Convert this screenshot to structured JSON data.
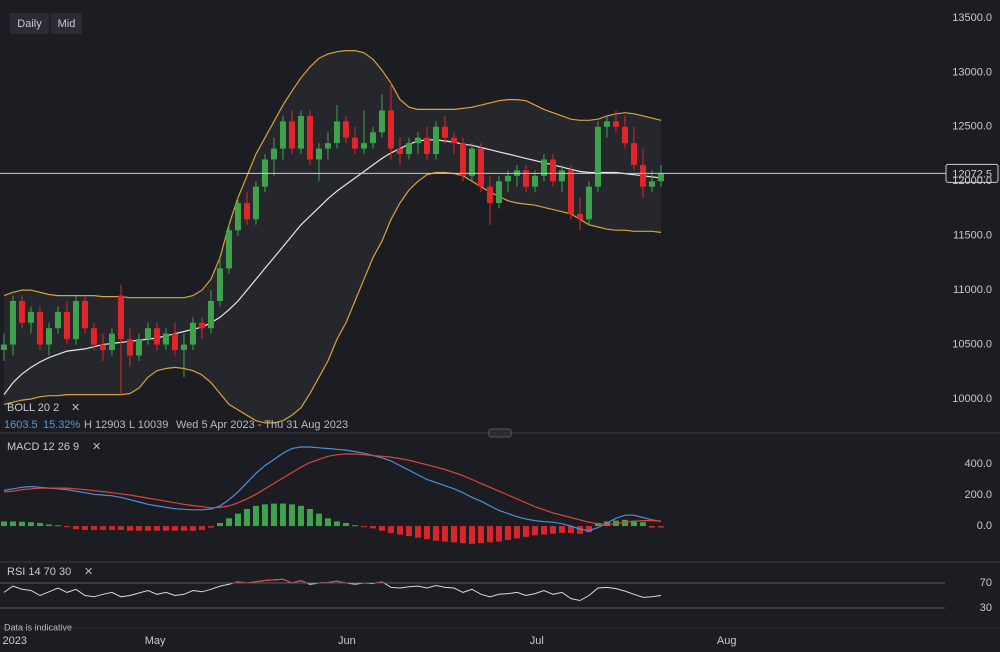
{
  "toolbar": [
    "Daily",
    "Mid"
  ],
  "footnote": "Data is indicative",
  "chart_data": [
    {
      "type": "candlestick",
      "indicator_label": "BOLL 20 2",
      "info": [
        "1603.5",
        "15.32%",
        "H 12903",
        "L 10039",
        "Wed 5 Apr 2023 - Thu 31 Aug 2023"
      ],
      "open": [
        10450,
        10500,
        10900,
        10700,
        10800,
        10500,
        10650,
        10800,
        10550,
        10900,
        10650,
        10500,
        10450,
        10950,
        10550,
        10400,
        10550,
        10650,
        10500,
        10600,
        10450,
        10500,
        10700,
        10650,
        10900,
        11200,
        11550,
        11800,
        11650,
        11950,
        12200,
        12300,
        12550,
        12300,
        12600,
        12200,
        12300,
        12350,
        12550,
        12400,
        12300,
        12350,
        12450,
        12650,
        12300,
        12250,
        12350,
        12400,
        12250,
        12500,
        12400,
        12350,
        12050,
        12300,
        11950,
        11800,
        12000,
        12050,
        12100,
        11950,
        12050,
        12200,
        12000,
        12100,
        11700,
        11650,
        11950,
        12500,
        12550,
        12500,
        12350,
        12150,
        11950,
        12000
      ],
      "high": [
        10600,
        10950,
        10950,
        10850,
        10850,
        10700,
        10850,
        10900,
        10950,
        10950,
        10700,
        10600,
        10650,
        11050,
        10650,
        10600,
        10700,
        10700,
        10650,
        10700,
        10600,
        10750,
        10750,
        11000,
        11300,
        11600,
        11850,
        11900,
        12000,
        12250,
        12400,
        12600,
        12650,
        12650,
        12650,
        12350,
        12450,
        12700,
        12600,
        12500,
        12650,
        12500,
        12800,
        12903,
        12400,
        12400,
        12450,
        12500,
        12550,
        12600,
        12450,
        12400,
        12350,
        12350,
        12050,
        12050,
        12100,
        12150,
        12150,
        12100,
        12250,
        12250,
        12150,
        12150,
        11850,
        12000,
        12550,
        12600,
        12650,
        12600,
        12500,
        12300,
        12100,
        12150
      ],
      "low": [
        10350,
        10400,
        10650,
        10600,
        10450,
        10400,
        10600,
        10500,
        10500,
        10600,
        10450,
        10350,
        10400,
        10039,
        10300,
        10350,
        10500,
        10450,
        10450,
        10400,
        10200,
        10450,
        10550,
        10600,
        10850,
        11150,
        11500,
        11600,
        11600,
        11900,
        12050,
        12200,
        12250,
        12250,
        12150,
        12000,
        12200,
        12300,
        12350,
        12250,
        12250,
        12300,
        12400,
        12200,
        12150,
        12200,
        12250,
        12200,
        12200,
        12350,
        12250,
        12000,
        12000,
        11900,
        11600,
        11750,
        11900,
        11950,
        11900,
        11900,
        12000,
        11950,
        11900,
        11650,
        11550,
        11600,
        11900,
        12400,
        12450,
        12300,
        12100,
        11850,
        11900,
        11950
      ],
      "close": [
        10500,
        10900,
        10700,
        10800,
        10500,
        10650,
        10800,
        10550,
        10900,
        10650,
        10500,
        10450,
        10600,
        10550,
        10400,
        10550,
        10650,
        10500,
        10600,
        10450,
        10500,
        10700,
        10650,
        10900,
        11200,
        11550,
        11800,
        11650,
        11950,
        12200,
        12300,
        12550,
        12300,
        12600,
        12200,
        12300,
        12350,
        12550,
        12400,
        12300,
        12350,
        12450,
        12650,
        12300,
        12250,
        12350,
        12400,
        12250,
        12500,
        12400,
        12350,
        12050,
        12300,
        11950,
        11800,
        12000,
        12050,
        12100,
        11950,
        12050,
        12200,
        12000,
        12100,
        11700,
        11650,
        11950,
        12500,
        12550,
        12500,
        12350,
        12150,
        11950,
        12000,
        12072.5
      ],
      "up_color": "#3fa34d",
      "down_color": "#e0262b",
      "bands": [
        {
          "color": "#d9a33a",
          "values": [
            10950,
            10980,
            11000,
            11000,
            10980,
            10960,
            10950,
            10950,
            10950,
            10950,
            10950,
            10940,
            10940,
            10940,
            10930,
            10930,
            10930,
            10930,
            10930,
            10930,
            10930,
            10950,
            11000,
            11100,
            11300,
            11600,
            11850,
            12050,
            12250,
            12400,
            12550,
            12700,
            12830,
            12950,
            13050,
            13130,
            13170,
            13190,
            13200,
            13200,
            13180,
            13120,
            13020,
            12900,
            12750,
            12680,
            12660,
            12660,
            12660,
            12660,
            12660,
            12670,
            12680,
            12700,
            12720,
            12740,
            12750,
            12750,
            12740,
            12700,
            12660,
            12630,
            12600,
            12570,
            12560,
            12560,
            12570,
            12600,
            12620,
            12630,
            12620,
            12600,
            12580,
            12560
          ]
        },
        {
          "color": "#e6e6e6",
          "values": [
            10040,
            10150,
            10230,
            10290,
            10340,
            10380,
            10410,
            10440,
            10450,
            10460,
            10480,
            10500,
            10510,
            10520,
            10530,
            10540,
            10550,
            10560,
            10580,
            10600,
            10620,
            10640,
            10660,
            10700,
            10750,
            10820,
            10900,
            11000,
            11100,
            11200,
            11300,
            11400,
            11500,
            11600,
            11680,
            11760,
            11840,
            11910,
            11970,
            12030,
            12090,
            12150,
            12210,
            12260,
            12300,
            12340,
            12370,
            12380,
            12380,
            12370,
            12360,
            12340,
            12330,
            12310,
            12290,
            12270,
            12250,
            12230,
            12210,
            12190,
            12170,
            12150,
            12130,
            12110,
            12090,
            12080,
            12080,
            12080,
            12080,
            12070,
            12060,
            12050,
            12040,
            12030
          ]
        },
        {
          "color": "#d9a33a",
          "values": [
            9950,
            9970,
            9990,
            10000,
            10020,
            10030,
            10030,
            10040,
            10040,
            10040,
            10040,
            10040,
            10040,
            10040,
            10050,
            10100,
            10200,
            10260,
            10280,
            10290,
            10280,
            10260,
            10220,
            10150,
            10050,
            9950,
            9900,
            9850,
            9800,
            9780,
            9780,
            9800,
            9850,
            9920,
            10050,
            10200,
            10350,
            10550,
            10700,
            10900,
            11100,
            11300,
            11450,
            11650,
            11800,
            11920,
            12000,
            12060,
            12080,
            12080,
            12070,
            12050,
            12000,
            11950,
            11900,
            11860,
            11820,
            11800,
            11790,
            11780,
            11760,
            11740,
            11720,
            11700,
            11650,
            11600,
            11580,
            11560,
            11550,
            11550,
            11540,
            11540,
            11540,
            11530
          ]
        }
      ],
      "band_fill": "#26272c",
      "last_price": 12072.5,
      "ylim": [
        9715,
        13665
      ],
      "yticks": [
        {
          "value": 10000,
          "label": "10000.0"
        },
        {
          "value": 10500,
          "label": "10500.0"
        },
        {
          "value": 11000,
          "label": "11000.0"
        },
        {
          "value": 11500,
          "label": "11500.0"
        },
        {
          "value": 12000,
          "label": "12000.0"
        },
        {
          "value": 12500,
          "label": "12500.0"
        },
        {
          "value": 13000,
          "label": "13000.0"
        },
        {
          "value": 13500,
          "label": "13500.0"
        }
      ],
      "xlim": [
        -0.44,
        110.67
      ],
      "xticks": [
        {
          "value": 1.2,
          "label": "2023"
        },
        {
          "value": 16.8,
          "label": "May"
        },
        {
          "value": 38.1,
          "label": "Jun"
        },
        {
          "value": 59.2,
          "label": "Jul"
        },
        {
          "value": 80.3,
          "label": "Aug"
        }
      ]
    },
    {
      "type": "macd",
      "indicator_label": "MACD 12 26 9",
      "series": [
        {
          "color": "#4a90d9",
          "values": [
            230,
            240,
            250,
            255,
            250,
            245,
            240,
            235,
            225,
            215,
            205,
            200,
            195,
            185,
            170,
            155,
            140,
            130,
            120,
            112,
            108,
            105,
            105,
            110,
            130,
            170,
            220,
            280,
            340,
            390,
            430,
            470,
            500,
            510,
            510,
            505,
            500,
            495,
            490,
            480,
            470,
            455,
            440,
            420,
            390,
            360,
            330,
            300,
            280,
            260,
            240,
            215,
            185,
            160,
            130,
            100,
            80,
            60,
            45,
            35,
            28,
            25,
            15,
            0,
            -20,
            -30,
            -10,
            20,
            50,
            70,
            70,
            55,
            40,
            30
          ]
        },
        {
          "color": "#e0423c",
          "values": [
            220,
            225,
            235,
            240,
            245,
            245,
            245,
            245,
            240,
            235,
            228,
            222,
            215,
            208,
            200,
            190,
            180,
            170,
            160,
            150,
            140,
            132,
            125,
            118,
            120,
            130,
            150,
            175,
            205,
            240,
            275,
            310,
            345,
            380,
            410,
            430,
            450,
            460,
            465,
            465,
            460,
            455,
            450,
            445,
            435,
            425,
            410,
            395,
            380,
            365,
            345,
            325,
            300,
            275,
            250,
            225,
            200,
            175,
            150,
            125,
            105,
            85,
            70,
            55,
            40,
            25,
            15,
            10,
            15,
            25,
            30,
            35,
            35,
            32
          ]
        }
      ],
      "histogram": [
        30,
        30,
        28,
        25,
        20,
        10,
        5,
        -5,
        -20,
        -25,
        -25,
        -25,
        -25,
        -25,
        -30,
        -30,
        -30,
        -30,
        -30,
        -30,
        -30,
        -30,
        -25,
        -10,
        20,
        50,
        80,
        110,
        130,
        140,
        145,
        145,
        140,
        130,
        110,
        80,
        50,
        30,
        20,
        5,
        -5,
        -15,
        -30,
        -45,
        -55,
        -65,
        -75,
        -85,
        -95,
        -100,
        -105,
        -110,
        -115,
        -110,
        -105,
        -100,
        -90,
        -80,
        -70,
        -60,
        -55,
        -50,
        -45,
        -45,
        -50,
        -40,
        20,
        30,
        35,
        40,
        35,
        25,
        -10,
        -10
      ],
      "hist_up_color": "#3fa34d",
      "hist_down_color": "#d8262b",
      "ylim": [
        -219,
        568
      ],
      "yticks": [
        {
          "value": 0,
          "label": "0.0"
        },
        {
          "value": 200,
          "label": "200.0"
        },
        {
          "value": 400,
          "label": "400.0"
        }
      ]
    },
    {
      "type": "rsi",
      "indicator_label": "RSI 14 70 30",
      "color": "#d8d8d8",
      "over_color": "#e0423c",
      "values": [
        55,
        65,
        60,
        58,
        50,
        56,
        62,
        55,
        60,
        50,
        48,
        52,
        55,
        48,
        50,
        54,
        58,
        52,
        55,
        50,
        52,
        58,
        56,
        60,
        65,
        68,
        72,
        70,
        72,
        74,
        75,
        76,
        70,
        74,
        68,
        70,
        71,
        73,
        70,
        68,
        70,
        69,
        72,
        63,
        62,
        64,
        65,
        62,
        66,
        63,
        62,
        55,
        60,
        52,
        48,
        52,
        53,
        55,
        50,
        53,
        58,
        52,
        55,
        45,
        42,
        50,
        62,
        63,
        61,
        57,
        52,
        47,
        48,
        50
      ],
      "ylim": [
        2.8,
        98.8
      ],
      "yticks": [
        30,
        70
      ]
    }
  ]
}
